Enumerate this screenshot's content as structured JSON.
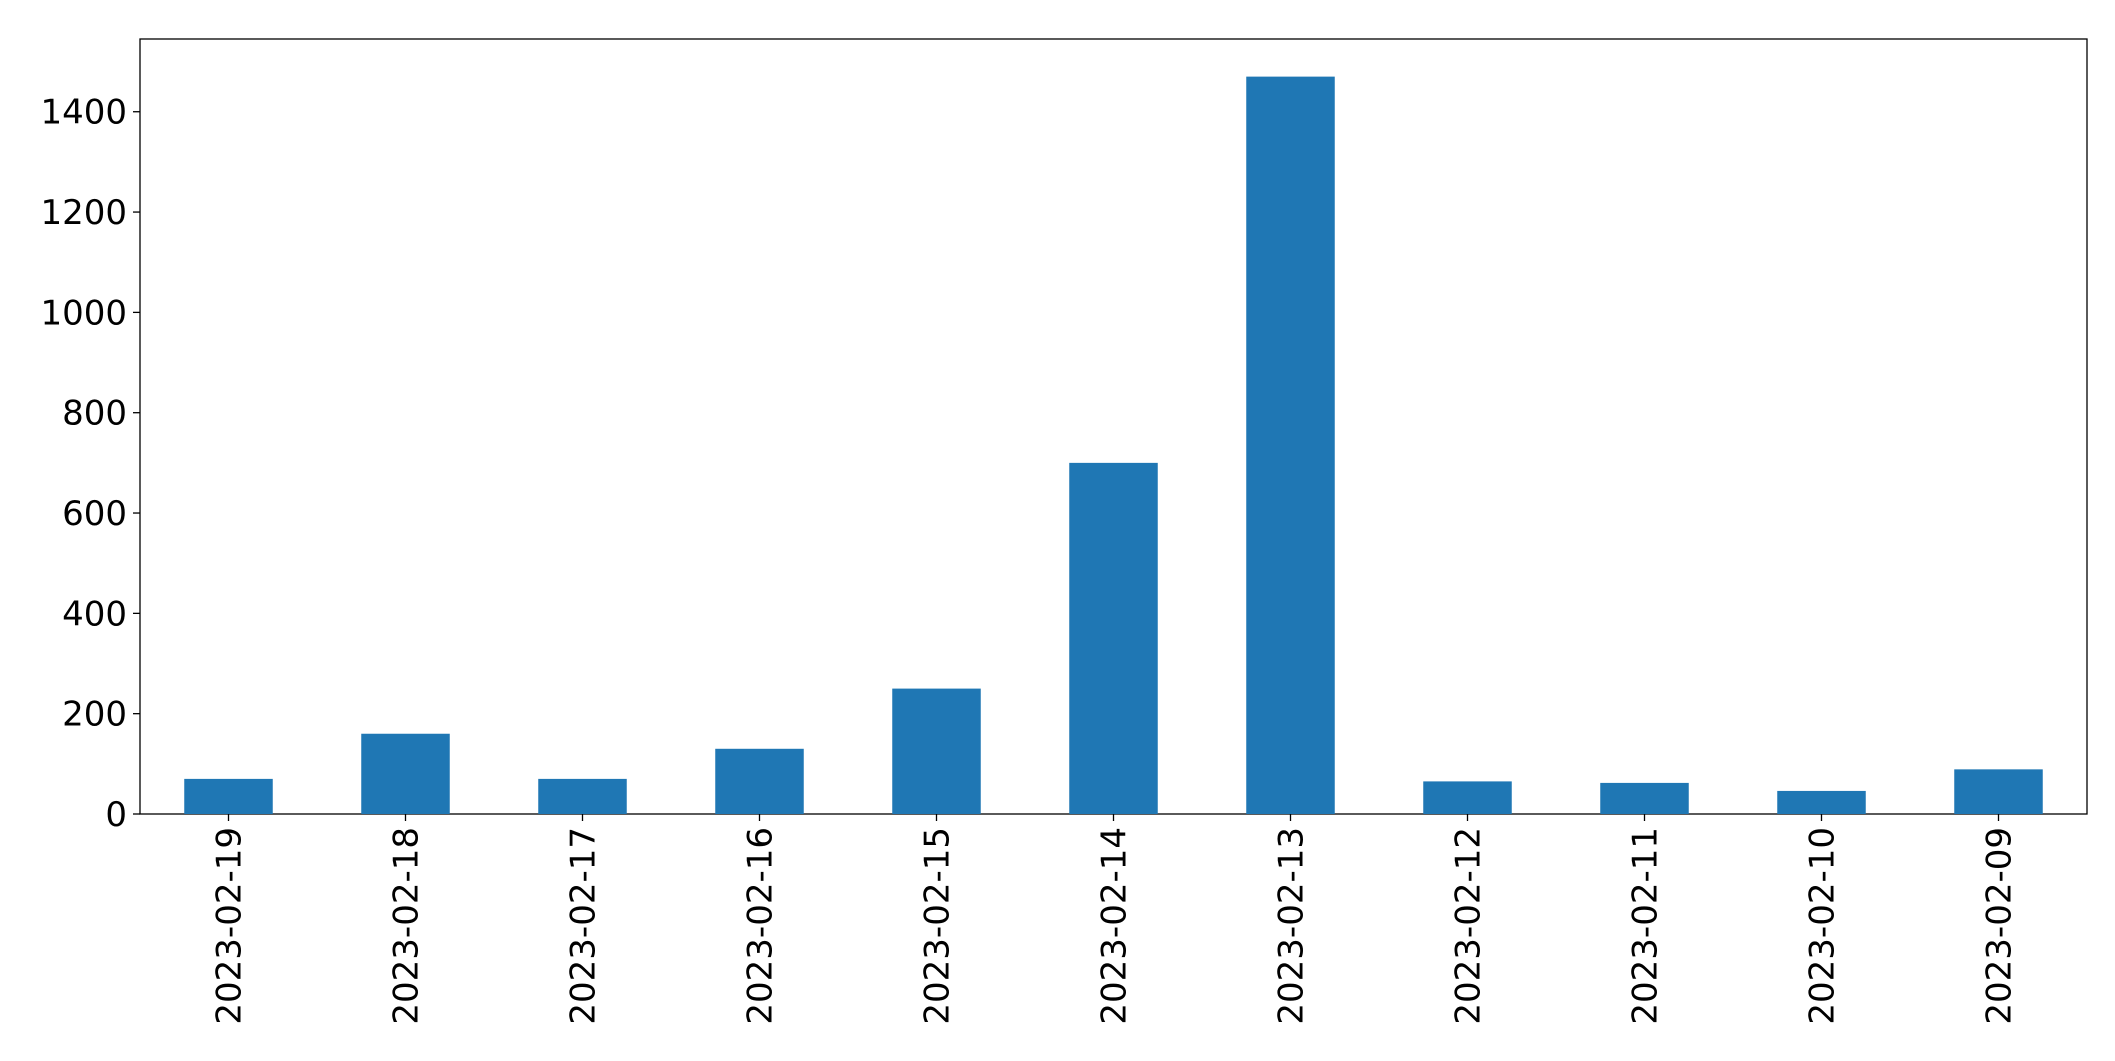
{
  "chart_data": {
    "type": "bar",
    "categories": [
      "2023-02-19",
      "2023-02-18",
      "2023-02-17",
      "2023-02-16",
      "2023-02-15",
      "2023-02-14",
      "2023-02-13",
      "2023-02-12",
      "2023-02-11",
      "2023-02-10",
      "2023-02-09"
    ],
    "values": [
      70,
      160,
      70,
      130,
      250,
      700,
      1470,
      65,
      62,
      46,
      89
    ],
    "color": "#1f77b4",
    "ylim": [
      0,
      1545
    ],
    "yticks": [
      0,
      200,
      400,
      600,
      800,
      1000,
      1200,
      1400
    ],
    "grid": false
  }
}
